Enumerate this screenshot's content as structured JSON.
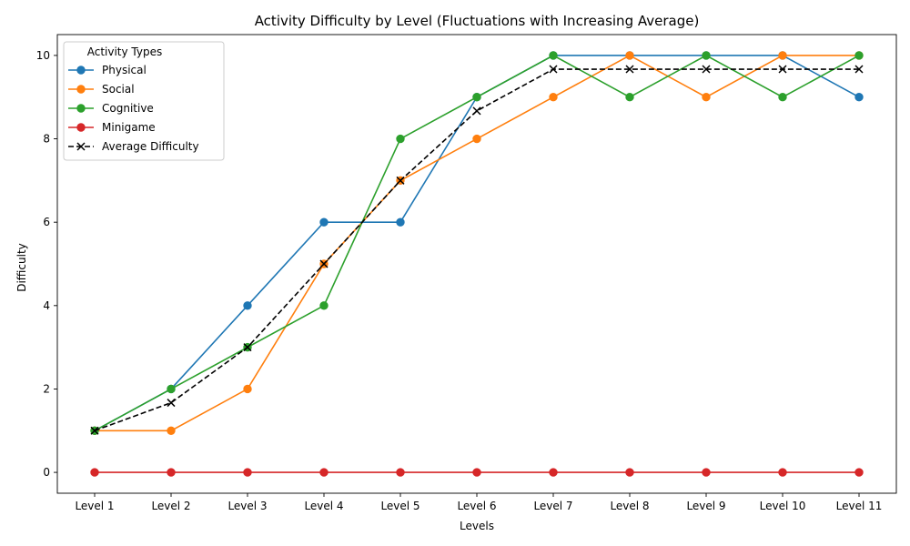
{
  "chart_data": {
    "type": "line",
    "title": "Activity Difficulty by Level (Fluctuations with Increasing Average)",
    "xlabel": "Levels",
    "ylabel": "Difficulty",
    "categories": [
      "Level 1",
      "Level 2",
      "Level 3",
      "Level 4",
      "Level 5",
      "Level 6",
      "Level 7",
      "Level 8",
      "Level 9",
      "Level 10",
      "Level 11"
    ],
    "ylim": [
      -0.5,
      10.5
    ],
    "yticks": [
      0,
      2,
      4,
      6,
      8,
      10
    ],
    "grid": false,
    "legend": {
      "title": "Activity Types",
      "placement": "top-left"
    },
    "series": [
      {
        "name": "Physical",
        "color": "#1f77b4",
        "marker": "circle",
        "dashed": false,
        "values": [
          1,
          2,
          4,
          6,
          6,
          9,
          10,
          10,
          10,
          10,
          9
        ]
      },
      {
        "name": "Social",
        "color": "#ff7f0e",
        "marker": "circle",
        "dashed": false,
        "values": [
          1,
          1,
          2,
          5,
          7,
          8,
          9,
          10,
          9,
          10,
          10
        ]
      },
      {
        "name": "Cognitive",
        "color": "#2ca02c",
        "marker": "circle",
        "dashed": false,
        "values": [
          1,
          2,
          3,
          4,
          8,
          9,
          10,
          9,
          10,
          9,
          10
        ]
      },
      {
        "name": "Minigame",
        "color": "#d62728",
        "marker": "circle",
        "dashed": false,
        "values": [
          0,
          0,
          0,
          0,
          0,
          0,
          0,
          0,
          0,
          0,
          0
        ]
      },
      {
        "name": "Average Difficulty",
        "color": "#000000",
        "marker": "x",
        "dashed": true,
        "values": [
          1,
          1.67,
          3,
          5,
          7,
          8.67,
          9.67,
          9.67,
          9.67,
          9.67,
          9.67
        ]
      }
    ]
  }
}
